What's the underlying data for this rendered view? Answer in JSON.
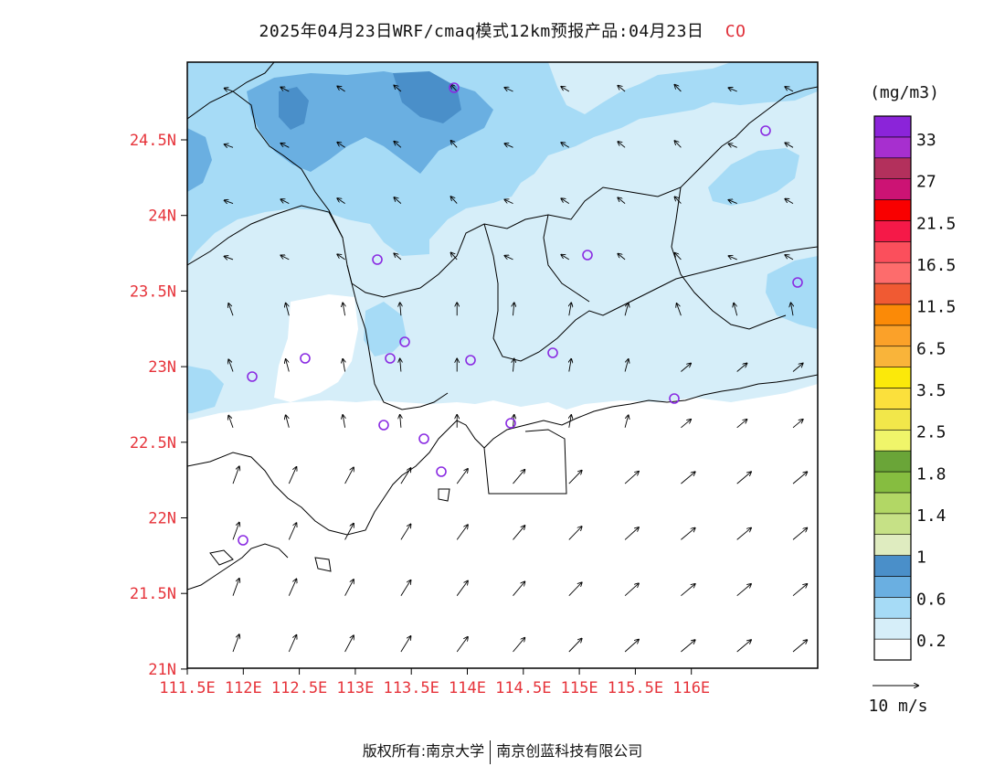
{
  "title": {
    "main": "2025年04月23日WRF/cmaq模式12km预报产品:04月23日",
    "pollutant": "CO"
  },
  "footer": {
    "left": "版权所有:南京大学",
    "right": "南京创蓝科技有限公司"
  },
  "axes": {
    "lat_ticks": [
      "24.5N",
      "24N",
      "23.5N",
      "23N",
      "22.5N",
      "22N",
      "21.5N",
      "21N"
    ],
    "lon_ticks": [
      "111.5E",
      "112E",
      "112.5E",
      "113E",
      "113.5E",
      "114E",
      "114.5E",
      "115E",
      "115.5E",
      "116E"
    ],
    "tick_color": "#e6333a"
  },
  "colorbar": {
    "unit": "(mg/m3)",
    "labels": [
      "33",
      "27",
      "21.5",
      "16.5",
      "11.5",
      "6.5",
      "3.5",
      "2.5",
      "1.8",
      "1.4",
      "1",
      "0.6",
      "0.2"
    ],
    "colors": [
      "#ffffff",
      "#d6eef9",
      "#a6dbf6",
      "#6aafe1",
      "#4a8fc9",
      "#dfecc0",
      "#c6e186",
      "#b2d765",
      "#86bd40",
      "#6aa538",
      "#f0f56a",
      "#f2e74a",
      "#fbe03c",
      "#fbe90a",
      "#f9b43a",
      "#fba129",
      "#fb8a07",
      "#f05a33",
      "#fd6c6c",
      "#fb4f5c",
      "#f51948",
      "#f90000",
      "#cc1374",
      "#b3305c",
      "#a72fcf",
      "#8b24d9"
    ]
  },
  "wind_reference": {
    "label": "10 m/s"
  },
  "stations_count_label": "",
  "map": {
    "water_color": "#ffffff",
    "boundary_color": "#000000",
    "station_marker_color": "#8a2be2"
  }
}
